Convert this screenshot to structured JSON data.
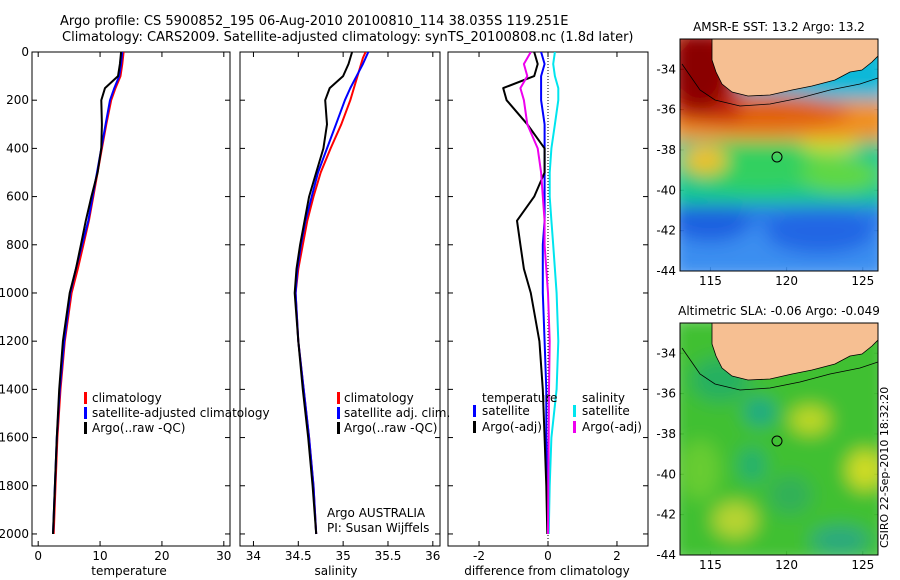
{
  "header": {
    "line1": "Argo profile: CS 5900852_195 06-Aug-2010 20100810_114 38.035S 119.251E",
    "line2": "Climatology: CARS2009. Satellite-adjusted climatology: synTS_20100808.nc (1.8d later)"
  },
  "sst_panel": {
    "title": "AMSR-E SST: 13.2  Argo: 13.2"
  },
  "sla_panel": {
    "title": "Altimetric SLA: -0.06  Argo: -0.049"
  },
  "credit": "CSIRO 22-Sep-2010 18:32:20",
  "annotation": {
    "line1": "Argo AUSTRALIA",
    "line2": "PI: Susan Wijffels"
  },
  "legends": {
    "temperature": [
      "climatology",
      "satellite-adjusted climatology",
      "Argo(..raw -QC)"
    ],
    "salinity": [
      "climatology",
      "satellite adj. clim.",
      "Argo(..raw -QC)"
    ],
    "difference": {
      "temp_title": "temperature",
      "sal_title": "salinity",
      "temp": [
        "satellite",
        "Argo(-adj)"
      ],
      "sal": [
        "satellite",
        "Argo(-adj)"
      ]
    }
  },
  "colors": {
    "climatology": "#ff0000",
    "satellite": "#0000ff",
    "argo": "#000000",
    "sal_satellite": "#00e5ee",
    "sal_argo": "#ee00ee",
    "land": "#f5bb90"
  },
  "chart_data": [
    {
      "type": "line",
      "id": "temperature",
      "xlabel": "temperature",
      "ylabel": "",
      "xlim": [
        -1,
        31
      ],
      "ylim": [
        2050,
        0
      ],
      "xticks": [
        "0",
        "10",
        "20",
        "30"
      ],
      "yticks": [
        "0",
        "200",
        "400",
        "600",
        "800",
        "1000",
        "1200",
        "1400",
        "1600",
        "1800",
        "2000"
      ],
      "depth": [
        0,
        50,
        100,
        150,
        200,
        300,
        400,
        500,
        600,
        700,
        800,
        900,
        1000,
        1200,
        1400,
        1600,
        1800,
        2000
      ],
      "series": [
        {
          "name": "climatology",
          "values": [
            13.8,
            13.6,
            13.3,
            12.5,
            11.8,
            11.0,
            10.3,
            9.6,
            8.9,
            8.2,
            7.3,
            6.4,
            5.4,
            4.3,
            3.6,
            3.1,
            2.8,
            2.5
          ]
        },
        {
          "name": "satellite-adjusted climatology",
          "values": [
            13.6,
            13.4,
            13.1,
            12.3,
            11.6,
            10.9,
            10.2,
            9.5,
            8.8,
            8.1,
            7.1,
            6.1,
            5.2,
            4.2,
            3.5,
            3.0,
            2.7,
            2.4
          ]
        },
        {
          "name": "Argo(..raw -QC)",
          "values": [
            13.4,
            13.2,
            12.9,
            10.8,
            10.2,
            10.3,
            10.2,
            9.6,
            8.6,
            7.7,
            6.9,
            6.1,
            5.1,
            4.0,
            3.4,
            3.0,
            2.7,
            2.4
          ]
        }
      ]
    },
    {
      "type": "line",
      "id": "salinity",
      "xlabel": "salinity",
      "ylabel": "",
      "xlim": [
        33.85,
        36.08
      ],
      "ylim": [
        2050,
        0
      ],
      "xticks": [
        "34",
        "34.5",
        "35",
        "35.5",
        "36"
      ],
      "depth": [
        0,
        25,
        50,
        100,
        150,
        200,
        300,
        400,
        500,
        600,
        700,
        800,
        900,
        1000,
        1200,
        1400,
        1600,
        1800,
        2000
      ],
      "series": [
        {
          "name": "climatology",
          "values": [
            35.25,
            35.22,
            35.2,
            35.16,
            35.12,
            35.08,
            34.98,
            34.86,
            34.75,
            34.67,
            34.6,
            34.55,
            34.5,
            34.47,
            34.5,
            34.56,
            34.62,
            34.67,
            34.7
          ]
        },
        {
          "name": "satellite adj. clim.",
          "values": [
            35.28,
            35.25,
            35.22,
            35.15,
            35.08,
            35.02,
            34.92,
            34.82,
            34.72,
            34.65,
            34.58,
            34.53,
            34.49,
            34.47,
            34.5,
            34.56,
            34.62,
            34.67,
            34.7
          ]
        },
        {
          "name": "Argo(..raw -QC)",
          "values": [
            35.1,
            35.08,
            35.06,
            35.0,
            34.85,
            34.8,
            34.82,
            34.78,
            34.7,
            34.62,
            34.57,
            34.52,
            34.48,
            34.46,
            34.5,
            34.55,
            34.61,
            34.66,
            34.7
          ]
        }
      ]
    },
    {
      "type": "line",
      "id": "difference",
      "xlabel": "difference from climatology",
      "ylabel": "",
      "xlim": [
        -2.9,
        2.9
      ],
      "ylim": [
        2050,
        0
      ],
      "xticks": [
        "-2",
        "0",
        "2"
      ],
      "depth": [
        0,
        50,
        100,
        150,
        200,
        300,
        400,
        500,
        600,
        700,
        800,
        900,
        1000,
        1200,
        1400,
        1600,
        1800,
        2000
      ],
      "series": [
        {
          "name": "temperature satellite",
          "values": [
            -0.2,
            -0.1,
            -0.2,
            -0.2,
            -0.2,
            -0.1,
            -0.1,
            -0.1,
            -0.1,
            -0.1,
            -0.15,
            -0.15,
            -0.15,
            -0.1,
            -0.05,
            -0.05,
            0,
            0
          ]
        },
        {
          "name": "temperature Argo(-adj)",
          "values": [
            -0.4,
            -0.3,
            -0.4,
            -1.3,
            -1.2,
            -0.6,
            -0.1,
            -0.1,
            -0.4,
            -0.9,
            -0.8,
            -0.7,
            -0.5,
            -0.25,
            -0.15,
            -0.1,
            -0.05,
            -0.02
          ]
        },
        {
          "name": "salinity satellite",
          "values": [
            0.2,
            0.15,
            0.2,
            0.3,
            0.3,
            0.2,
            0.1,
            0.05,
            0.05,
            0.1,
            0.15,
            0.2,
            0.25,
            0.3,
            0.25,
            0.1,
            0.05,
            0.02
          ]
        },
        {
          "name": "salinity Argo(-adj)",
          "values": [
            -0.5,
            -0.7,
            -0.6,
            -0.8,
            -0.7,
            -0.6,
            -0.3,
            -0.2,
            -0.15,
            -0.1,
            -0.1,
            -0.05,
            0,
            0.05,
            0.03,
            0.02,
            0.01,
            0
          ]
        }
      ]
    },
    {
      "type": "heatmap",
      "id": "sst_map",
      "title": "AMSR-E SST: 13.2  Argo: 13.2",
      "xlim": [
        113,
        126
      ],
      "ylim": [
        -44,
        -32.5
      ],
      "xticks": [
        "115",
        "120",
        "125"
      ],
      "yticks": [
        "-34",
        "-36",
        "-38",
        "-40",
        "-42",
        "-44"
      ],
      "float_position": {
        "lon": 119.251,
        "lat": -38.035
      }
    },
    {
      "type": "heatmap",
      "id": "sla_map",
      "title": "Altimetric SLA: -0.06  Argo: -0.049",
      "xlim": [
        113,
        126
      ],
      "ylim": [
        -44,
        -32.5
      ],
      "xticks": [
        "115",
        "120",
        "125"
      ],
      "yticks": [
        "-34",
        "-36",
        "-38",
        "-40",
        "-42",
        "-44"
      ],
      "float_position": {
        "lon": 119.251,
        "lat": -38.035
      }
    }
  ]
}
